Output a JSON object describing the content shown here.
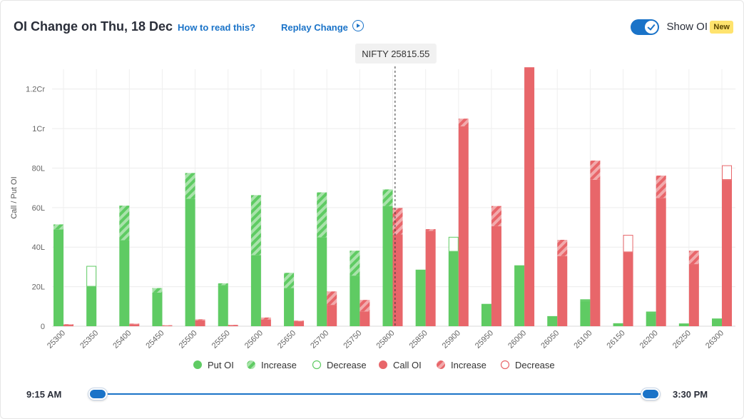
{
  "header": {
    "title": "OI Change on Thu, 18 Dec",
    "how_to_read": "How to read this?",
    "replay": "Replay Change",
    "show_oi_label": "Show OI",
    "show_oi_on": true,
    "new_badge": "New"
  },
  "timeline": {
    "start": "9:15 AM",
    "end": "3:30 PM",
    "range_fraction": [
      0,
      1
    ]
  },
  "colors": {
    "put": "#5fcb63",
    "put_light": "#a9e3ab",
    "call": "#e8666a",
    "call_light": "#f2aaac",
    "accent": "#1a73c8"
  },
  "chart_data": {
    "type": "bar",
    "ylabel": "Call / Put OI",
    "ylim": [
      0,
      13000000
    ],
    "yticks": [
      0,
      2000000,
      4000000,
      6000000,
      8000000,
      10000000,
      12000000
    ],
    "ytick_labels": [
      "0",
      "20L",
      "40L",
      "60L",
      "80L",
      "1Cr",
      "1.2Cr"
    ],
    "grid": true,
    "legend_position": "bottom",
    "spot_label": "NIFTY 25815.55",
    "spot_value": 25815.55,
    "categories": [
      "25300",
      "25350",
      "25400",
      "25450",
      "25500",
      "25550",
      "25600",
      "25650",
      "25700",
      "25750",
      "25800",
      "25850",
      "25900",
      "25950",
      "26000",
      "26050",
      "26100",
      "26150",
      "26200",
      "26250",
      "26300"
    ],
    "series": [
      {
        "name": "Put OI",
        "current_oi": [
          5150000,
          2000000,
          6100000,
          1930000,
          7750000,
          2170000,
          6630000,
          2700000,
          6770000,
          3820000,
          6920000,
          2860000,
          3770000,
          1130000,
          3080000,
          510000,
          1290000,
          150000,
          670000,
          140000,
          390000
        ],
        "previous_oi": [
          4900000,
          3050000,
          4350000,
          1700000,
          6450000,
          2080000,
          3600000,
          1930000,
          4500000,
          2560000,
          6080000,
          2860000,
          4520000,
          1130000,
          3080000,
          510000,
          1360000,
          150000,
          740000,
          140000,
          390000
        ]
      },
      {
        "name": "Call OI",
        "current_oi": [
          100000,
          0,
          130000,
          50000,
          350000,
          70000,
          440000,
          280000,
          1760000,
          1330000,
          5980000,
          4910000,
          10500000,
          6080000,
          13100000,
          4370000,
          8380000,
          3740000,
          7620000,
          3820000,
          7400000
        ],
        "previous_oi": [
          70000,
          0,
          100000,
          30000,
          300000,
          50000,
          340000,
          250000,
          1080000,
          750000,
          4640000,
          4830000,
          10110000,
          5060000,
          13100000,
          3550000,
          7410000,
          4620000,
          6490000,
          3140000,
          8140000
        ]
      }
    ],
    "legend": [
      {
        "label": "Put OI",
        "style": "solid",
        "color": "put"
      },
      {
        "label": "Increase",
        "style": "hatch",
        "color": "put"
      },
      {
        "label": "Decrease",
        "style": "outline",
        "color": "put"
      },
      {
        "label": "Call OI",
        "style": "solid",
        "color": "call"
      },
      {
        "label": "Increase",
        "style": "hatch",
        "color": "call"
      },
      {
        "label": "Decrease",
        "style": "outline",
        "color": "call"
      }
    ]
  }
}
